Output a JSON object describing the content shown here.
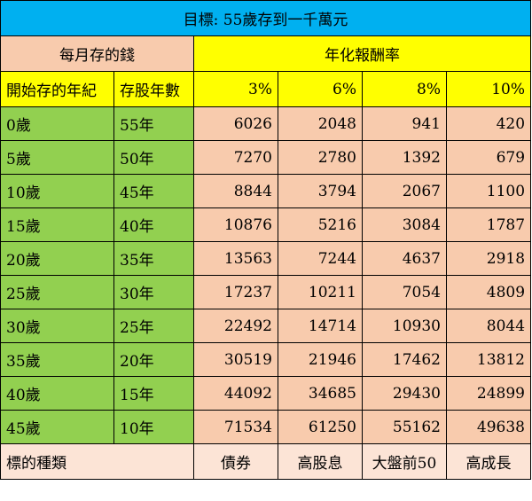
{
  "title": "目標: 55歲存到一千萬元",
  "monthly_label": "每月存的錢",
  "rate_group_label": "年化報酬率",
  "columns": {
    "start_age": "開始存的年紀",
    "years": "存股年數",
    "rates": [
      "3%",
      "6%",
      "8%",
      "10%"
    ]
  },
  "rows": [
    {
      "age": "0歲",
      "years": "55年",
      "values": [
        "6026",
        "2048",
        "941",
        "420"
      ]
    },
    {
      "age": "5歲",
      "years": "50年",
      "values": [
        "7270",
        "2780",
        "1392",
        "679"
      ]
    },
    {
      "age": "10歲",
      "years": "45年",
      "values": [
        "8844",
        "3794",
        "2067",
        "1100"
      ]
    },
    {
      "age": "15歲",
      "years": "40年",
      "values": [
        "10876",
        "5216",
        "3084",
        "1787"
      ]
    },
    {
      "age": "20歲",
      "years": "35年",
      "values": [
        "13563",
        "7244",
        "4637",
        "2918"
      ]
    },
    {
      "age": "25歲",
      "years": "30年",
      "values": [
        "17237",
        "10211",
        "7054",
        "4809"
      ]
    },
    {
      "age": "30歲",
      "years": "25年",
      "values": [
        "22492",
        "14714",
        "10930",
        "8044"
      ]
    },
    {
      "age": "35歲",
      "years": "20年",
      "values": [
        "30519",
        "21946",
        "17462",
        "13812"
      ]
    },
    {
      "age": "40歲",
      "years": "15年",
      "values": [
        "44092",
        "34685",
        "29430",
        "24899"
      ]
    },
    {
      "age": "45歲",
      "years": "10年",
      "values": [
        "71534",
        "61250",
        "55162",
        "49638"
      ]
    }
  ],
  "footer": {
    "label": "標的種類",
    "types": [
      "債券",
      "高股息",
      "大盤前50",
      "高成長"
    ]
  },
  "colors": {
    "title_bg": "#00b0f0",
    "peach": "#f8cbad",
    "yellow": "#ffff00",
    "green": "#92d050",
    "footer_bg": "#fce4d6"
  }
}
